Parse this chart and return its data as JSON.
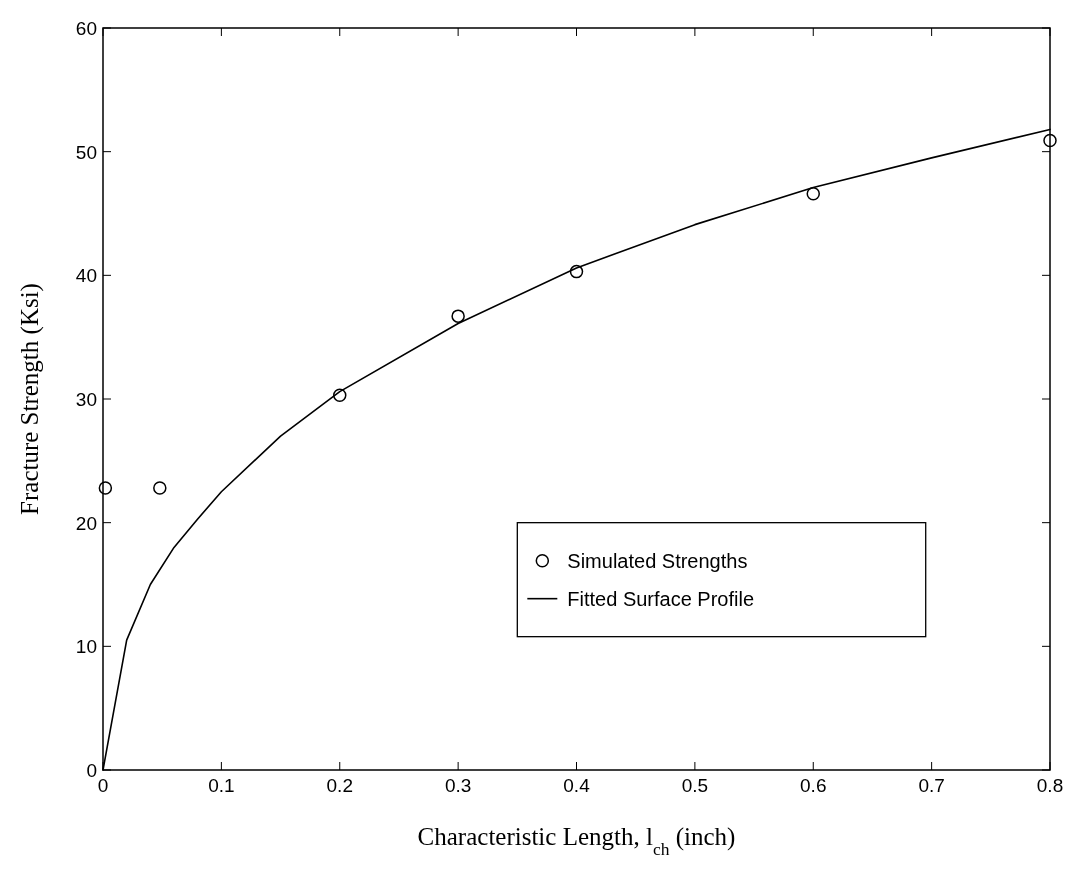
{
  "chart_data": {
    "type": "scatter",
    "xlabel": "Characteristic Length, l$_{ch}$ (inch)",
    "ylabel": "Fracture Strength (Ksi)",
    "xlim": [
      0,
      0.8
    ],
    "xticks": [
      0,
      0.1,
      0.2,
      0.3,
      0.4,
      0.5,
      0.6,
      0.7,
      0.8
    ],
    "ylim": [
      0,
      60
    ],
    "yticks": [
      0,
      10,
      20,
      30,
      40,
      50,
      60
    ],
    "grid": false,
    "legend": "right",
    "series": [
      {
        "name": "Simulated Strengths",
        "marker": "circle",
        "color": "#000000",
        "x": [
          0.002,
          0.048,
          0.2,
          0.3,
          0.4,
          0.6,
          0.8
        ],
        "values": [
          22.8,
          22.8,
          30.3,
          36.7,
          40.3,
          46.6,
          50.9
        ]
      },
      {
        "name": "Fitted Surface Profile",
        "type": "line",
        "marker": "none",
        "line_style": "solid",
        "color": "#000000",
        "x": [
          0,
          0.02,
          0.04,
          0.06,
          0.08,
          0.1,
          0.15,
          0.2,
          0.3,
          0.4,
          0.5,
          0.6,
          0.7,
          0.8
        ],
        "values": [
          0,
          10.5,
          15,
          18,
          20.3,
          22.5,
          27,
          30.6,
          36.1,
          40.6,
          44.1,
          47.1,
          49.5,
          51.8
        ]
      }
    ]
  }
}
